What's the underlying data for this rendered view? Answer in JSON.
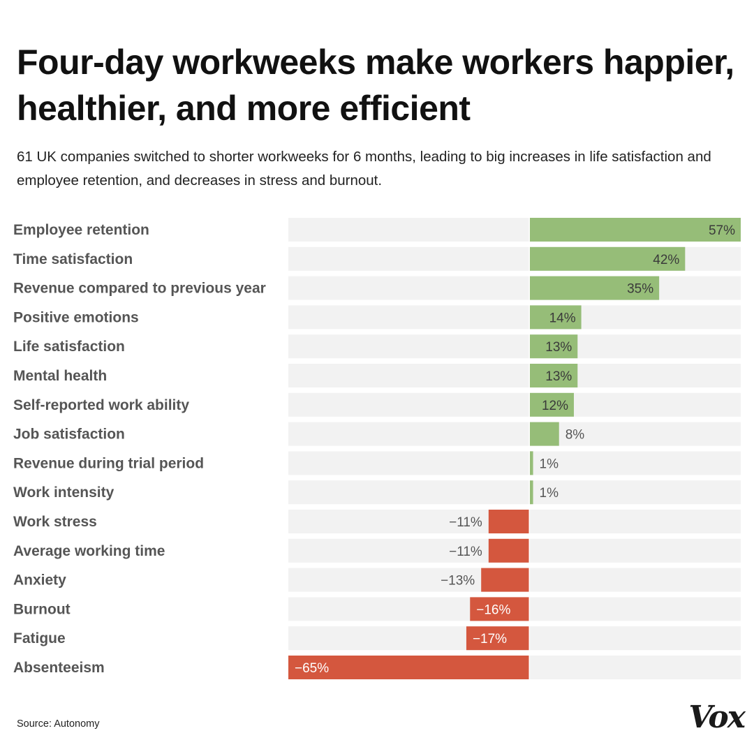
{
  "chart_data": {
    "type": "bar",
    "orientation": "horizontal",
    "title": "Four-day workweeks make workers happier, healthier, and more efficient",
    "subtitle": "61 UK companies switched to shorter workweeks for 6 months, leading to big increases in life satisfaction and employee retention, and decreases in stress and burnout.",
    "categories": [
      "Employee retention",
      "Time satisfaction",
      "Revenue compared to previous year",
      "Positive emotions",
      "Life satisfaction",
      "Mental health",
      "Self-reported work ability",
      "Job satisfaction",
      "Revenue during trial period",
      "Work intensity",
      "Work stress",
      "Average working time",
      "Anxiety",
      "Burnout",
      "Fatigue",
      "Absenteeism"
    ],
    "values": [
      57,
      42,
      35,
      14,
      13,
      13,
      12,
      8,
      1,
      1,
      -11,
      -11,
      -13,
      -16,
      -17,
      -65
    ],
    "value_labels": [
      "57%",
      "42%",
      "35%",
      "14%",
      "13%",
      "13%",
      "12%",
      "8%",
      "1%",
      "1%",
      "−11%",
      "−11%",
      "−13%",
      "−16%",
      "−17%",
      "−65%"
    ],
    "xlim": [
      -65,
      57
    ],
    "grid": false,
    "colors": {
      "positive": "#96bd78",
      "negative": "#d4573e",
      "track": "#f2f2f2"
    }
  },
  "source": "Source: Autonomy",
  "logo_text": "Vox"
}
